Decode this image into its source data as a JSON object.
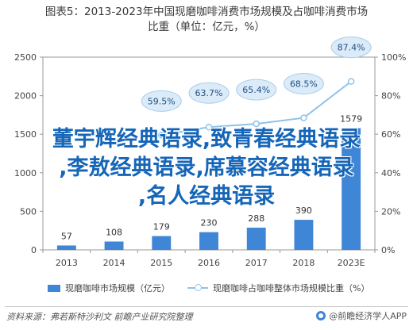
{
  "title": {
    "line1": "图表5：2013-2023年中国现磨咖啡消费市场规模及占咖啡消费市场",
    "line2": "比重（单位：亿元，%）"
  },
  "chart_data": {
    "type": "bar",
    "categories": [
      "2013",
      "2014",
      "2015",
      "2016",
      "2017",
      "2018",
      "2023E"
    ],
    "series": [
      {
        "name": "现磨咖啡市场规模（亿元）",
        "type": "bar",
        "axis": "left",
        "values": [
          57,
          108,
          179,
          230,
          288,
          390,
          1579
        ],
        "color": "#3f86d6"
      },
      {
        "name": "现磨咖啡占咖啡整体市场规模比重（%）",
        "type": "line",
        "axis": "right",
        "values": [
          null,
          null,
          59.5,
          63.7,
          65.4,
          68.5,
          87.4
        ],
        "color": "#8fc2ea"
      }
    ],
    "y_left": {
      "min": 0,
      "max": 2500,
      "ticks": [
        "0",
        "500",
        "1000",
        "1500",
        "2000",
        "2500"
      ]
    },
    "y_right": {
      "min": 0,
      "max": 100,
      "ticks": [
        "0%",
        "20%",
        "40%",
        "60%",
        "80%",
        "100%"
      ]
    },
    "bar_labels": [
      "57",
      "108",
      "179",
      "230",
      "288",
      "390",
      "1579"
    ],
    "line_labels": [
      "59.5%",
      "63.7%",
      "65.4%",
      "68.5%",
      "87.4%"
    ],
    "grid": false,
    "legend_position": "bottom"
  },
  "overlay": {
    "line1": "董宇辉经典语录,致青春经典语录",
    "line2": ",李敖经典语录,席慕容经典语录",
    "line3": ",名人经典语录"
  },
  "legend": {
    "bar_label": "现磨咖啡市场规模（亿元）",
    "line_label": "现磨咖啡占咖啡整体市场规模比重（%）"
  },
  "footer": {
    "source": "资料来源：弗若斯特沙利文 前瞻产业研究院整理",
    "brand": "@前瞻经济学人APP"
  },
  "colors": {
    "bar": "#3f86d6",
    "line": "#8fc2ea",
    "overlay_text": "#1666b8"
  }
}
